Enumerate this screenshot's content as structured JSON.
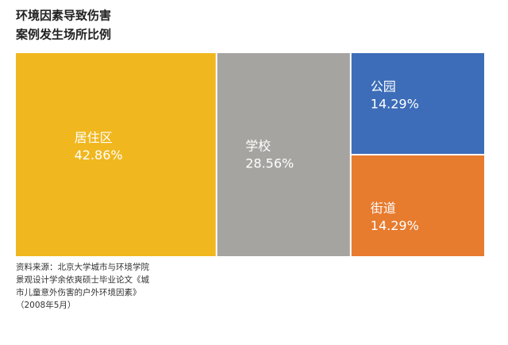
{
  "chart_data": {
    "type": "treemap",
    "title": [
      "环境因素导致伤害",
      "案例发生场所比例"
    ],
    "categories": [
      "居住区",
      "学校",
      "公园",
      "街道"
    ],
    "values": [
      42.86,
      28.56,
      14.29,
      14.29
    ],
    "value_labels": [
      "42.86%",
      "28.56%",
      "14.29%",
      "14.29%"
    ],
    "colors": [
      "#f0b71e",
      "#a6a4a1",
      "#3d6db8",
      "#e77b2e"
    ],
    "source": [
      "资料来源：北京大学城市与环境学院",
      "景观设计学余依爽硕士毕业论文《城",
      "市儿童意外伤害的户外环境因素》",
      "（2008年5月）"
    ]
  }
}
